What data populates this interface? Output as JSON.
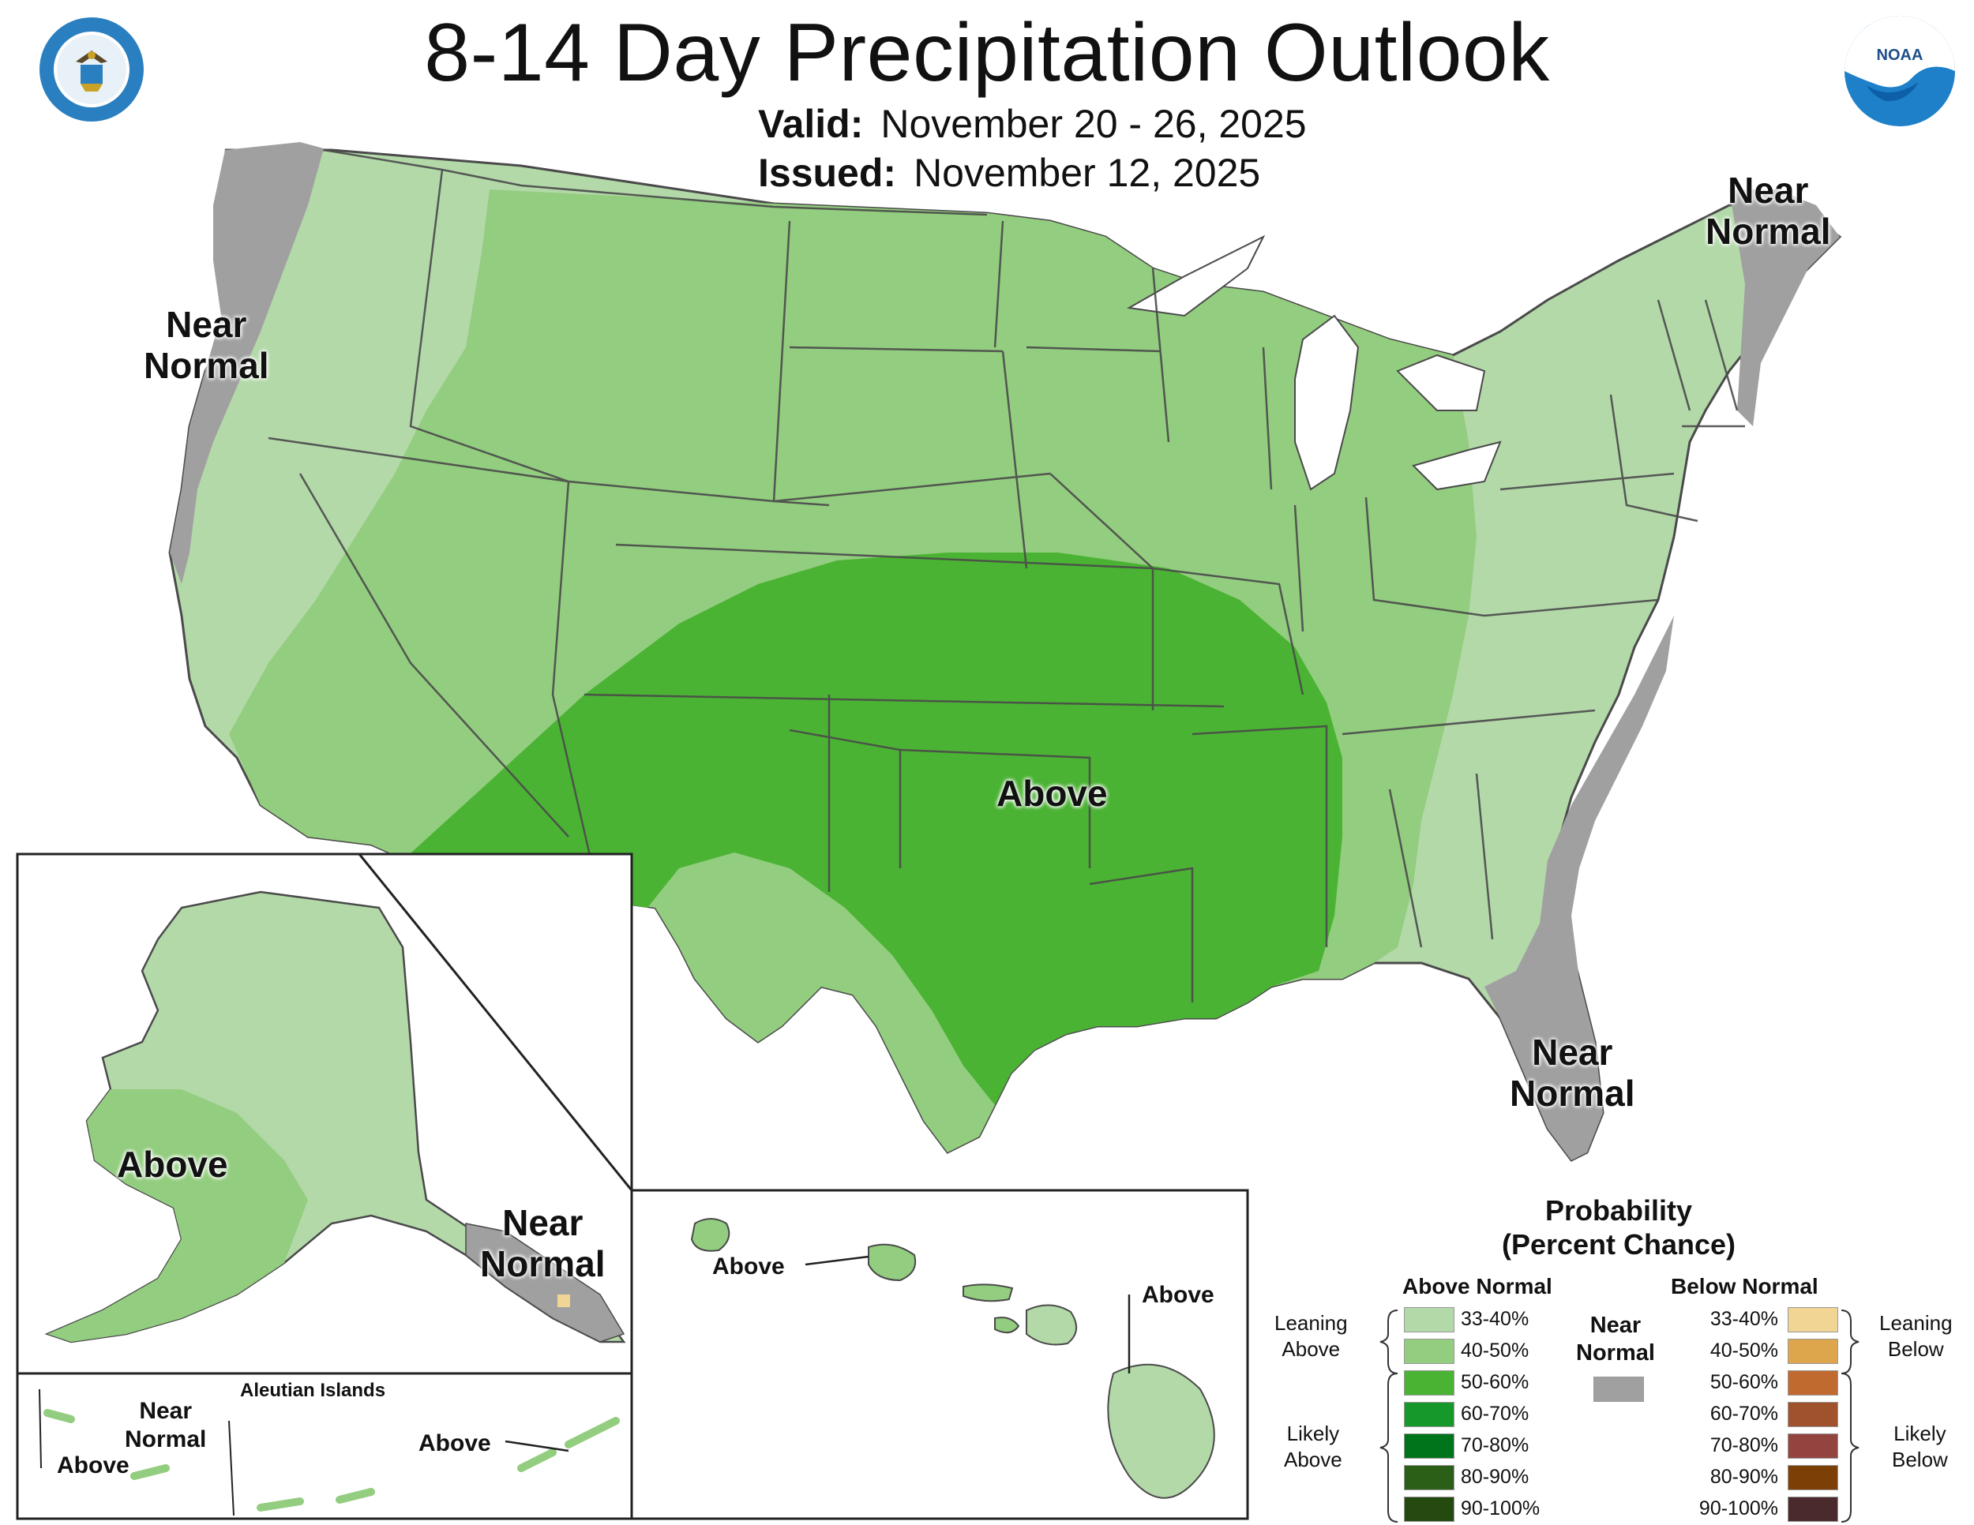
{
  "header": {
    "title": "8-14 Day Precipitation Outlook",
    "valid_label": "Valid:",
    "valid_value": "November 20 - 26, 2025",
    "issued_label": "Issued:",
    "issued_value": "November 12, 2025"
  },
  "map": {
    "labels": {
      "northwest": [
        "Near",
        "Normal"
      ],
      "northeast": [
        "Near",
        "Normal"
      ],
      "florida": [
        "Near",
        "Normal"
      ],
      "center": "Above",
      "alaska_above": "Above",
      "alaska_near": [
        "Near",
        "Normal"
      ]
    },
    "aleutian": {
      "title": "Aleutian Islands",
      "near": [
        "Near",
        "Normal"
      ],
      "above_west": "Above",
      "above_east": "Above"
    },
    "hawaii": {
      "above_left": "Above",
      "above_right": "Above"
    }
  },
  "legend": {
    "title": [
      "Probability",
      "(Percent Chance)"
    ],
    "above_header": "Above Normal",
    "below_header": "Below Normal",
    "near_label": [
      "Near",
      "Normal"
    ],
    "near_color": "#a0a0a0",
    "above": [
      {
        "range": "33-40%",
        "color": "#b3d9a9"
      },
      {
        "range": "40-50%",
        "color": "#93cd7f"
      },
      {
        "range": "50-60%",
        "color": "#4bb334"
      },
      {
        "range": "60-70%",
        "color": "#16992a"
      },
      {
        "range": "70-80%",
        "color": "#00741b"
      },
      {
        "range": "80-90%",
        "color": "#2b5e17"
      },
      {
        "range": "90-100%",
        "color": "#254a0f"
      }
    ],
    "below": [
      {
        "range": "33-40%",
        "color": "#f1d594"
      },
      {
        "range": "40-50%",
        "color": "#dda54c"
      },
      {
        "range": "50-60%",
        "color": "#c16a2f"
      },
      {
        "range": "60-70%",
        "color": "#a0522d"
      },
      {
        "range": "70-80%",
        "color": "#93443e"
      },
      {
        "range": "80-90%",
        "color": "#7c3f06"
      },
      {
        "range": "90-100%",
        "color": "#4a2a2c"
      }
    ],
    "leaning_above": [
      "Leaning",
      "Above"
    ],
    "likely_above": [
      "Likely",
      "Above"
    ],
    "leaning_below": [
      "Leaning",
      "Below"
    ],
    "likely_below": [
      "Likely",
      "Below"
    ]
  },
  "colors": {
    "lean_above": "#b3d9a9",
    "above_40": "#93cd7f",
    "above_50": "#4bb334",
    "near_normal": "#a0a0a0",
    "tan_spot": "#f1d594",
    "border": "#4a4a4a",
    "noaa_blue": "#1e80c8",
    "commerce_blue": "#2a7fc0"
  }
}
